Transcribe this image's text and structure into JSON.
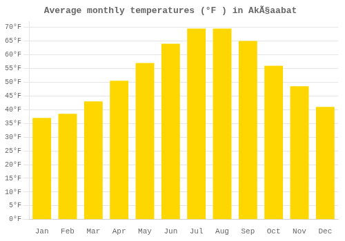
{
  "chart_data": {
    "type": "bar",
    "title": "Average monthly temperatures (°F ) in AkÃ§aabat",
    "categories": [
      "Jan",
      "Feb",
      "Mar",
      "Apr",
      "May",
      "Jun",
      "Jul",
      "Aug",
      "Sep",
      "Oct",
      "Nov",
      "Dec"
    ],
    "values": [
      37,
      38.5,
      43,
      50.5,
      57,
      64,
      69.5,
      69.5,
      65,
      56,
      48.5,
      41
    ],
    "color": "#FFD700",
    "ylim": [
      0,
      72
    ],
    "yticks": [
      {
        "value": 0,
        "label": "0°F"
      },
      {
        "value": 5,
        "label": "5°F"
      },
      {
        "value": 10,
        "label": "10°F"
      },
      {
        "value": 15,
        "label": "15°F"
      },
      {
        "value": 20,
        "label": "20°F"
      },
      {
        "value": 25,
        "label": "25°F"
      },
      {
        "value": 30,
        "label": "30°F"
      },
      {
        "value": 35,
        "label": "35°F"
      },
      {
        "value": 40,
        "label": "40°F"
      },
      {
        "value": 45,
        "label": "45°F"
      },
      {
        "value": 50,
        "label": "50°F"
      },
      {
        "value": 55,
        "label": "55°F"
      },
      {
        "value": 60,
        "label": "60°F"
      },
      {
        "value": 65,
        "label": "65°F"
      },
      {
        "value": 70,
        "label": "70°F"
      }
    ],
    "grid": true
  }
}
